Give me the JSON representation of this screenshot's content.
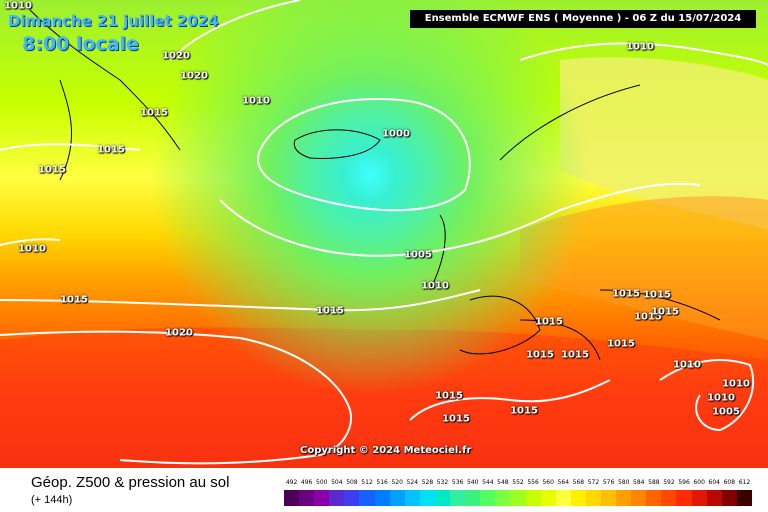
{
  "header": {
    "date": "Dimanche 21 juillet 2024",
    "time": "8:00 locale",
    "model": "Ensemble ECMWF ENS  ( Moyenne )  -  06 Z du 15/07/2024"
  },
  "isobar_labels": [
    "1010",
    "1020",
    "1020",
    "1010",
    "1015",
    "1015",
    "1015",
    "1000",
    "1010",
    "1010",
    "1005",
    "1010",
    "1015",
    "1015",
    "1020",
    "1015",
    "1015",
    "1015",
    "1015",
    "1015",
    "1015",
    "1015",
    "1015",
    "1015",
    "1010",
    "1010",
    "1010",
    "1005",
    "1015",
    "1015"
  ],
  "copyright": "Copyright © 2024 Meteociel.fr",
  "footer": {
    "title": "Géop. Z500 & pression au sol",
    "subtitle": "(+ 144h)"
  },
  "legend": {
    "values": [
      "492",
      "496",
      "500",
      "504",
      "508",
      "512",
      "516",
      "520",
      "524",
      "528",
      "532",
      "536",
      "540",
      "544",
      "548",
      "552",
      "556",
      "560",
      "564",
      "568",
      "572",
      "576",
      "580",
      "584",
      "588",
      "592",
      "596",
      "600",
      "604",
      "608",
      "612"
    ],
    "colors": [
      "#4b0058",
      "#6b0080",
      "#8a00a8",
      "#5a2acd",
      "#3c3cf0",
      "#1560ff",
      "#007cff",
      "#00a0ff",
      "#00c4ff",
      "#00e0f8",
      "#00e8c8",
      "#30f0a0",
      "#3cf080",
      "#50ff60",
      "#7cff40",
      "#a0ff20",
      "#c8ff00",
      "#e8ff00",
      "#ffff40",
      "#fff000",
      "#ffd800",
      "#ffc000",
      "#ffa000",
      "#ff8400",
      "#ff6400",
      "#ff4800",
      "#ff2c00",
      "#e01800",
      "#b80800",
      "#800000",
      "#3a0000"
    ]
  }
}
